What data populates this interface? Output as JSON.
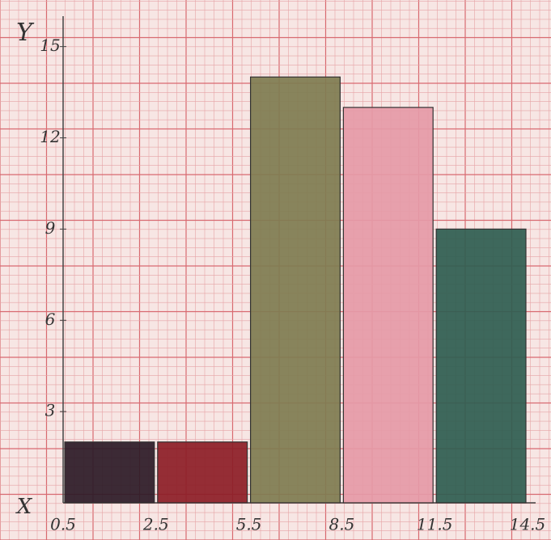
{
  "chart_data": {
    "type": "histogram",
    "x_label": "X",
    "y_label": "Y",
    "bins": [
      0.5,
      2.5,
      5.5,
      8.5,
      11.5,
      14.5
    ],
    "values": [
      2,
      2,
      14,
      13,
      9
    ],
    "colors": [
      "#2b1a26",
      "#8c1d26",
      "#7e7c50",
      "#e59aa7",
      "#2e5d50"
    ],
    "ylim": [
      0,
      16
    ],
    "yticks": [
      3,
      6,
      9,
      12,
      15
    ],
    "grid": true
  }
}
